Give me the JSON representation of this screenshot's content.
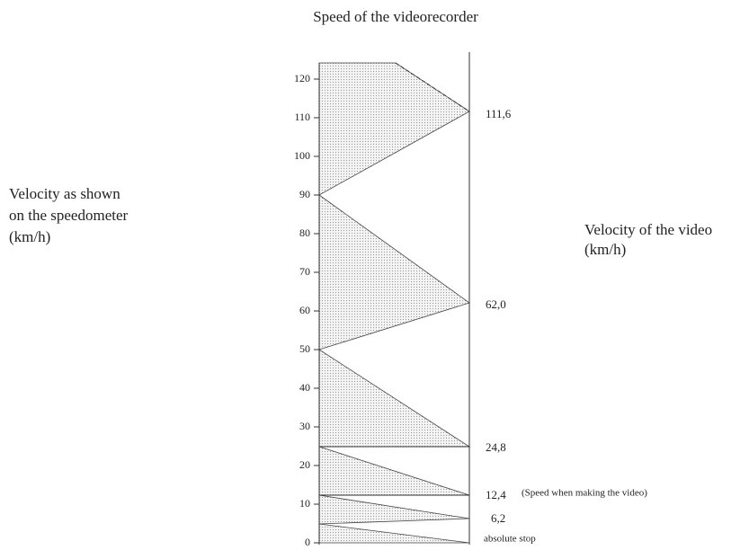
{
  "title": "Speed of the videorecorder",
  "left_label": [
    "Velocity as shown",
    "on the speedometer",
    "(km/h)"
  ],
  "right_label": [
    "Velocity of the video",
    "(km/h)"
  ],
  "left_ticks": [
    "0",
    "10",
    "20",
    "30",
    "40",
    "50",
    "60",
    "70",
    "80",
    "90",
    "100",
    "110",
    "120"
  ],
  "right_values": [
    "111,6",
    "62,0",
    "24,8",
    "12,4",
    "6,2"
  ],
  "annotation": "(Speed when making the video)",
  "stop_label": "absolute stop"
}
